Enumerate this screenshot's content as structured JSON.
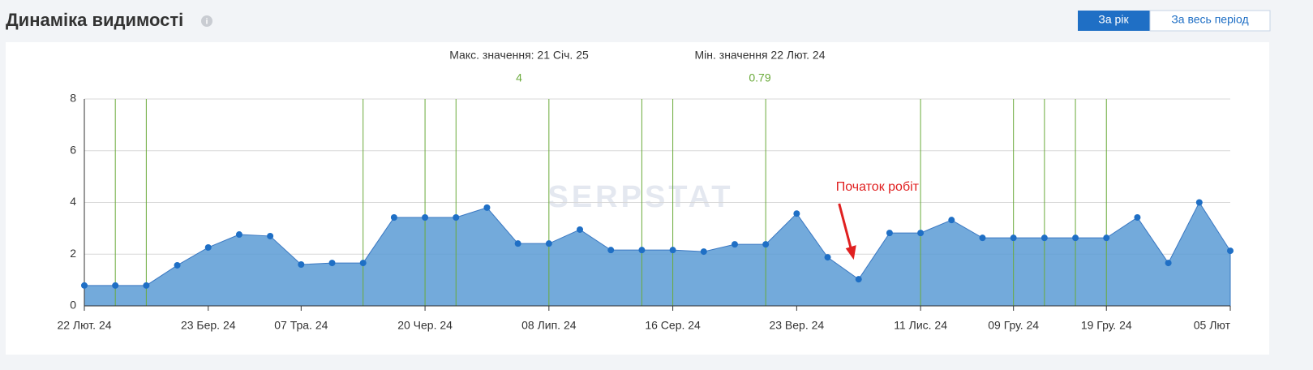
{
  "header": {
    "title": "Динаміка видимості",
    "buttons": [
      "За рік",
      "За весь період"
    ]
  },
  "watermark": "SERPSTAT",
  "chart_data": {
    "type": "area",
    "color": "#5b9bd5",
    "max_label": "Макс. значення: 21 Січ. 25",
    "max_value": 4,
    "min_label": "Мін. значення 22 Лют. 24",
    "min_value": 0.79,
    "annotation": {
      "text": "Початок робіт",
      "index": 25
    },
    "categories": [
      "22 Лют. 24",
      null,
      null,
      null,
      "23 Бер. 24",
      null,
      null,
      "07 Тра. 24",
      null,
      null,
      null,
      "20 Чер. 24",
      null,
      null,
      null,
      "08 Лип. 24",
      null,
      null,
      null,
      "16 Сер. 24",
      null,
      null,
      null,
      "23 Вер. 24",
      null,
      null,
      null,
      "11 Лис. 24",
      null,
      null,
      "09 Гру. 24",
      null,
      null,
      "19 Гру. 24",
      null,
      null,
      null,
      "05 Лют"
    ],
    "values": [
      0.79,
      0.79,
      0.79,
      1.57,
      2.26,
      2.76,
      2.7,
      1.6,
      1.66,
      1.66,
      3.42,
      3.42,
      3.42,
      3.8,
      2.41,
      2.41,
      2.95,
      2.16,
      2.16,
      2.16,
      2.1,
      2.38,
      2.38,
      3.57,
      1.88,
      1.03,
      2.82,
      2.82,
      3.32,
      2.63,
      2.63,
      2.63,
      2.63,
      2.63,
      3.42,
      1.66,
      4,
      2.13
    ],
    "markers": [
      1,
      2,
      9,
      11,
      12,
      15,
      18,
      19,
      22,
      27,
      30,
      31,
      32,
      33
    ],
    "ylim": [
      0,
      8
    ],
    "yticks": [
      0,
      2,
      4,
      6,
      8
    ],
    "grid": true
  }
}
